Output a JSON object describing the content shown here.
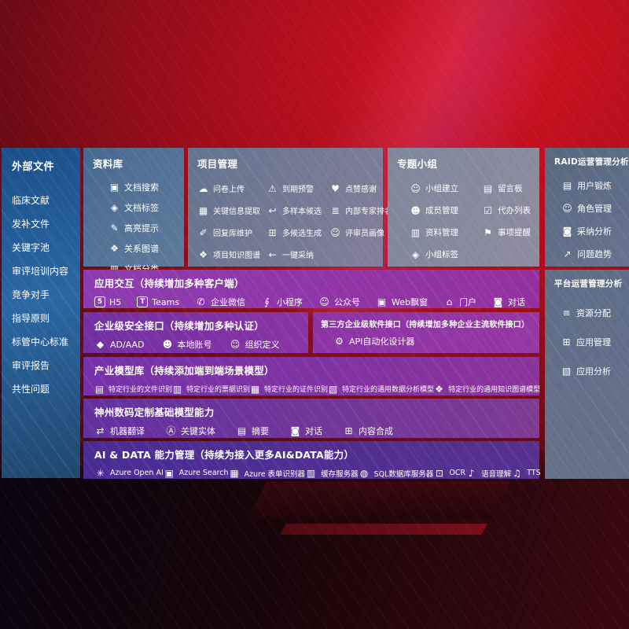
{
  "colors": {
    "background_red": "#ad1020",
    "sidebar_blue": "#2a67a3",
    "panel_steel_blue": "#5e7a9c",
    "panel_steel_gray": "#8e8ba0",
    "row_purple": "#8b33a4",
    "row_indigo": "#4a2b94",
    "text": "#ffffff"
  },
  "sidebar": {
    "title": "外部文件",
    "items": [
      "临床文献",
      "发补文件",
      "关键字池",
      "审评培训内容",
      "竞争对手",
      "指导原则",
      "标管中心标准",
      "审评报告",
      "共性问题"
    ]
  },
  "panels": {
    "library": {
      "title": "资料库",
      "items": [
        {
          "label": "文档搜索",
          "icon": "doc-search",
          "glyph": "▣"
        },
        {
          "label": "文档标签",
          "icon": "doc-tag",
          "glyph": "◈"
        },
        {
          "label": "高亮提示",
          "icon": "highlight-pen",
          "glyph": "✎"
        },
        {
          "label": "关系图谱",
          "icon": "relation-graph",
          "glyph": "❖"
        },
        {
          "label": "文档分类",
          "icon": "doc-classify",
          "glyph": "▥"
        }
      ]
    },
    "project": {
      "title": "项目管理",
      "items": [
        {
          "label": "问卷上传",
          "icon": "cloud-upload",
          "glyph": "☁"
        },
        {
          "label": "到期预警",
          "icon": "due-alarm",
          "glyph": "⚠"
        },
        {
          "label": "点赞感谢",
          "icon": "like-thanks",
          "glyph": "♥"
        },
        {
          "label": "关键信息提取",
          "icon": "key-info-extract",
          "glyph": "▦"
        },
        {
          "label": "多样本候选",
          "icon": "multi-sample-candidate",
          "glyph": "↩"
        },
        {
          "label": "内部专家排名",
          "icon": "expert-ranking",
          "glyph": "≣"
        },
        {
          "label": "回复库维护",
          "icon": "reply-library-maintain",
          "glyph": "✐"
        },
        {
          "label": "多候选生成",
          "icon": "multi-candidate-generate",
          "glyph": "⊞"
        },
        {
          "label": "评审员画像",
          "icon": "reviewer-profile",
          "glyph": "☺"
        },
        {
          "label": "项目知识图谱",
          "icon": "project-knowledge-graph",
          "glyph": "❖"
        },
        {
          "label": "一键采纳",
          "icon": "one-click-adopt",
          "glyph": "←"
        }
      ]
    },
    "groups": {
      "title": "专题小组",
      "items": [
        {
          "label": "小组建立",
          "icon": "group-create",
          "glyph": "☺"
        },
        {
          "label": "留言板",
          "icon": "message-board",
          "glyph": "▤"
        },
        {
          "label": "成员管理",
          "icon": "member-manage",
          "glyph": "☻"
        },
        {
          "label": "代办列表",
          "icon": "todo-list",
          "glyph": "☑"
        },
        {
          "label": "资料管理",
          "icon": "material-manage",
          "glyph": "▥"
        },
        {
          "label": "事项提醒",
          "icon": "reminder-bell",
          "glyph": "⚑"
        },
        {
          "label": "小组标签",
          "icon": "group-tag",
          "glyph": "◈"
        }
      ]
    },
    "raid": {
      "title": "RAID运营管理分析",
      "items": [
        {
          "label": "用户锻炼",
          "icon": "user-id-card",
          "glyph": "▤"
        },
        {
          "label": "角色管理",
          "icon": "role-manage",
          "glyph": "☺"
        },
        {
          "label": "采纳分析",
          "icon": "qa-chat",
          "glyph": "◙"
        },
        {
          "label": "问题趋势",
          "icon": "trend-chart",
          "glyph": "↗"
        }
      ]
    },
    "platform": {
      "title": "平台运营管理分析",
      "items": [
        {
          "label": "资源分配",
          "icon": "resource-allocation-list",
          "glyph": "≡"
        },
        {
          "label": "应用管理",
          "icon": "app-grid",
          "glyph": "⊞"
        },
        {
          "label": "应用分析",
          "icon": "app-analysis-chart",
          "glyph": "▧"
        }
      ]
    }
  },
  "rows": {
    "interaction": {
      "title": "应用交互（持续增加多种客户端）",
      "items": [
        {
          "label": "H5",
          "icon": "html5",
          "glyph": "5",
          "boxed": true
        },
        {
          "label": "Teams",
          "icon": "teams",
          "glyph": "T",
          "boxed": true
        },
        {
          "label": "企业微信",
          "icon": "wechat-work",
          "glyph": "✆"
        },
        {
          "label": "小程序",
          "icon": "mini-program",
          "glyph": "∮"
        },
        {
          "label": "公众号",
          "icon": "official-account",
          "glyph": "☺"
        },
        {
          "label": "Web飘窗",
          "icon": "web-popup-window",
          "glyph": "▣"
        },
        {
          "label": "门户",
          "icon": "portal",
          "glyph": "⌂"
        },
        {
          "label": "对话",
          "icon": "dialogue-chat",
          "glyph": "◙"
        }
      ]
    },
    "security": {
      "title": "企业级安全接口（持续增加多种认证）",
      "items": [
        {
          "label": "AD/AAD",
          "icon": "ad-aad-shield",
          "glyph": "◆"
        },
        {
          "label": "本地账号",
          "icon": "local-account",
          "glyph": "☻"
        },
        {
          "label": "组织定义",
          "icon": "org-definition",
          "glyph": "☺"
        }
      ]
    },
    "thirdparty": {
      "title": "第三方企业级软件接口（持续增加多种企业主流软件接口）",
      "items": [
        {
          "label": "API自动化设计器",
          "icon": "api-auto-designer-gear",
          "glyph": "⚙"
        }
      ]
    },
    "industry": {
      "title": "产业模型库（持续添加端到端场景模型）",
      "items": [
        {
          "label": "特定行业的文件识别",
          "icon": "industry-doc-recognition",
          "glyph": "▤"
        },
        {
          "label": "特定行业的票据识别",
          "icon": "industry-receipt-recognition",
          "glyph": "▥"
        },
        {
          "label": "特定行业的证件识别",
          "icon": "industry-certificate-recognition",
          "glyph": "▦"
        },
        {
          "label": "特定行业的通用数据分析模型",
          "icon": "industry-data-analysis-model",
          "glyph": "▧"
        },
        {
          "label": "特定行业的通用知识图谱模型",
          "icon": "industry-knowledge-graph-model",
          "glyph": "❖"
        }
      ]
    },
    "basemodel": {
      "title": "神州数码定制基础模型能力",
      "items": [
        {
          "label": "机器翻译",
          "icon": "machine-translation",
          "glyph": "⇄"
        },
        {
          "label": "关键实体",
          "icon": "key-entity",
          "glyph": "Ⓐ"
        },
        {
          "label": "摘要",
          "icon": "summary-doc",
          "glyph": "▤"
        },
        {
          "label": "对话",
          "icon": "dialogue-chat",
          "glyph": "◙"
        },
        {
          "label": "内容合成",
          "icon": "content-synthesis",
          "glyph": "⊞"
        }
      ]
    },
    "aidata": {
      "title": "AI & DATA 能力管理（持续为接入更多AI&DATA能力）",
      "items": [
        {
          "label": "Azure Open AI",
          "icon": "azure-openai",
          "glyph": "✳"
        },
        {
          "label": "Azure Search",
          "icon": "azure-search",
          "glyph": "▣"
        },
        {
          "label": "Azure 表单识别器",
          "icon": "azure-form-recognizer",
          "glyph": "▦"
        },
        {
          "label": "缓存服务器",
          "icon": "cache-server",
          "glyph": "▥"
        },
        {
          "label": "SQL数据库服务器",
          "icon": "sql-database",
          "glyph": "◍"
        },
        {
          "label": "OCR",
          "icon": "ocr",
          "glyph": "⊡"
        },
        {
          "label": "语音理解",
          "icon": "speech-understanding",
          "glyph": "♪"
        },
        {
          "label": "TTS",
          "icon": "tts",
          "glyph": "♫"
        }
      ]
    }
  }
}
